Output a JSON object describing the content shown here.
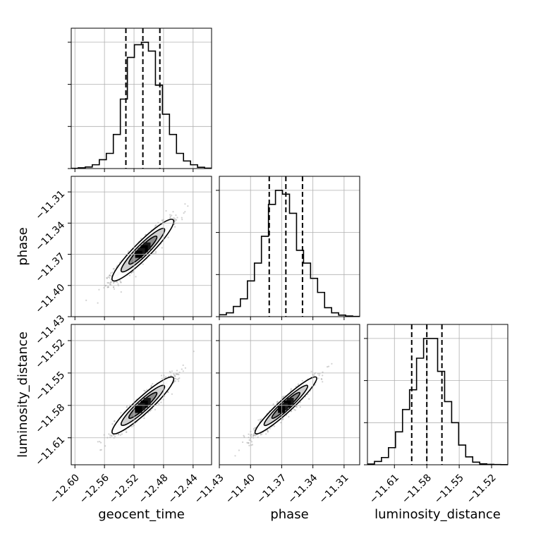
{
  "chart_data": {
    "type": "corner",
    "parameters": [
      "geocent_time",
      "phase",
      "luminosity_distance"
    ],
    "axis_labels": {
      "geocent_time": "geocent_time",
      "phase": "phase",
      "luminosity_distance": "luminosity_distance"
    },
    "ranges": {
      "geocent_time": [
        -12.605,
        -12.415
      ],
      "phase": [
        -11.43,
        -11.295
      ],
      "luminosity_distance": [
        -11.635,
        -11.505
      ]
    },
    "ticks": {
      "geocent_time": [
        -12.6,
        -12.56,
        -12.52,
        -12.48,
        -12.44
      ],
      "phase": [
        -11.43,
        -11.4,
        -11.37,
        -11.34,
        -11.31
      ],
      "luminosity_distance": [
        -11.61,
        -11.58,
        -11.55,
        -11.52
      ]
    },
    "tick_labels": {
      "geocent_time": [
        "−12.60",
        "−12.56",
        "−12.52",
        "−12.48",
        "−12.44"
      ],
      "phase": [
        "−11.43",
        "−11.40",
        "−11.37",
        "−11.34",
        "−11.31"
      ],
      "luminosity_distance": [
        "−11.61",
        "−11.58",
        "−11.55",
        "−11.52"
      ]
    },
    "quantiles": {
      "geocent_time": [
        -12.531,
        -12.508,
        -12.485
      ],
      "phase": [
        -11.382,
        -11.366,
        -11.35
      ],
      "luminosity_distance": [
        -11.594,
        -11.58,
        -11.566
      ]
    },
    "histograms": {
      "geocent_time": {
        "edges": [
          -12.605,
          -12.5955,
          -12.586,
          -12.5765,
          -12.567,
          -12.5575,
          -12.548,
          -12.5385,
          -12.529,
          -12.5195,
          -12.51,
          -12.5005,
          -12.491,
          -12.4815,
          -12.472,
          -12.4625,
          -12.453,
          -12.4435,
          -12.434,
          -12.4245,
          -12.415
        ],
        "counts": [
          0.002,
          0.006,
          0.012,
          0.03,
          0.07,
          0.12,
          0.27,
          0.55,
          0.88,
          0.98,
          1.0,
          0.93,
          0.66,
          0.43,
          0.27,
          0.12,
          0.06,
          0.03,
          0.01,
          0.003
        ]
      },
      "phase": {
        "edges": [
          -11.43,
          -11.42325,
          -11.4165,
          -11.40975,
          -11.403,
          -11.39625,
          -11.3895,
          -11.38275,
          -11.376,
          -11.36925,
          -11.3625,
          -11.35575,
          -11.349,
          -11.34225,
          -11.3355,
          -11.32875,
          -11.322,
          -11.31525,
          -11.3085,
          -11.30175,
          -11.295
        ],
        "counts": [
          0.015,
          0.03,
          0.08,
          0.14,
          0.28,
          0.42,
          0.63,
          0.88,
          0.99,
          0.96,
          0.81,
          0.52,
          0.42,
          0.3,
          0.19,
          0.07,
          0.03,
          0.012,
          0.005,
          0.002
        ]
      },
      "luminosity_distance": {
        "edges": [
          -11.635,
          -11.6285,
          -11.622,
          -11.6155,
          -11.609,
          -11.6025,
          -11.596,
          -11.5895,
          -11.583,
          -11.5765,
          -11.57,
          -11.5635,
          -11.557,
          -11.5505,
          -11.544,
          -11.5375,
          -11.531,
          -11.5245,
          -11.518,
          -11.5115,
          -11.505
        ],
        "counts": [
          0.006,
          0.025,
          0.055,
          0.13,
          0.25,
          0.42,
          0.57,
          0.81,
          0.96,
          0.96,
          0.71,
          0.48,
          0.32,
          0.15,
          0.06,
          0.02,
          0.007,
          0.003,
          0.002,
          0.001
        ]
      }
    },
    "pairs": [
      {
        "x": "geocent_time",
        "y": "phase",
        "center": [
          -12.508,
          -11.366
        ],
        "sigma": [
          0.019,
          0.0135
        ],
        "rho": 0.93
      },
      {
        "x": "geocent_time",
        "y": "luminosity_distance",
        "center": [
          -12.508,
          -11.58
        ],
        "sigma": [
          0.019,
          0.012
        ],
        "rho": 0.93
      },
      {
        "x": "phase",
        "y": "luminosity_distance",
        "center": [
          -11.366,
          -11.58
        ],
        "sigma": [
          0.0135,
          0.012
        ],
        "rho": 0.95
      }
    ],
    "grid": true
  }
}
